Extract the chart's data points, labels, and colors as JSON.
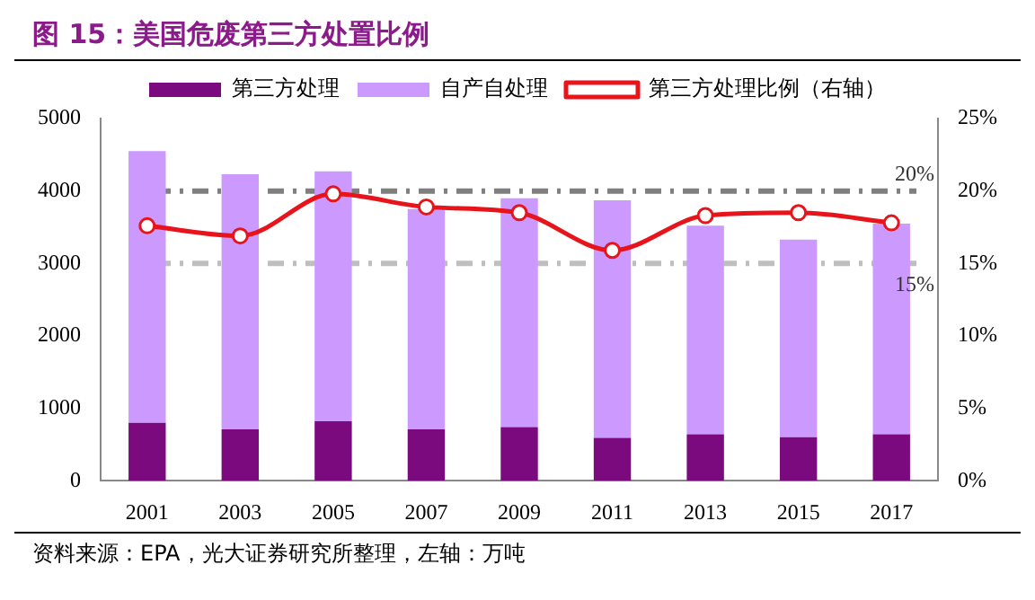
{
  "chart_data": {
    "type": "bar",
    "title": "图 15：美国危废第三方处置比例",
    "categories": [
      "2001",
      "2003",
      "2005",
      "2007",
      "2009",
      "2011",
      "2013",
      "2015",
      "2017"
    ],
    "stacked": true,
    "series": [
      {
        "name": "第三方处理",
        "color": "#7b0a7e",
        "values": [
          800,
          710,
          820,
          710,
          740,
          590,
          640,
          600,
          640
        ]
      },
      {
        "name": "自产自处理",
        "color": "#cc99ff",
        "values": [
          3750,
          3520,
          3450,
          3040,
          3160,
          3280,
          2880,
          2730,
          2910
        ]
      },
      {
        "name": "第三方处理比例（右轴）",
        "type": "line",
        "axis": "y2",
        "color": "#e8141b",
        "marker": "circle",
        "values": [
          17.6,
          16.9,
          19.8,
          18.9,
          18.5,
          15.9,
          18.3,
          18.5,
          17.8
        ]
      }
    ],
    "ylim": [
      0,
      5000
    ],
    "yticks": [
      0,
      1000,
      2000,
      3000,
      4000,
      5000
    ],
    "y2lim": [
      0,
      25
    ],
    "y2ticks": [
      {
        "value": 0,
        "label": "0%"
      },
      {
        "value": 5,
        "label": "5%"
      },
      {
        "value": 10,
        "label": "10%"
      },
      {
        "value": 15,
        "label": "15%"
      },
      {
        "value": 20,
        "label": "20%"
      },
      {
        "value": 25,
        "label": "25%"
      }
    ],
    "ref_lines": [
      {
        "axis": "y2",
        "value": 20,
        "label": "20%",
        "color": "#7f7f7f",
        "line_style": "dashdot"
      },
      {
        "axis": "y2",
        "value": 15,
        "label": "15%",
        "color": "#bfbfbf",
        "line_style": "dashdot"
      }
    ],
    "legend": "top",
    "grid": false,
    "annotations": [
      "资料来源：EPA，光大证券研究所整理，左轴：万吨"
    ]
  }
}
